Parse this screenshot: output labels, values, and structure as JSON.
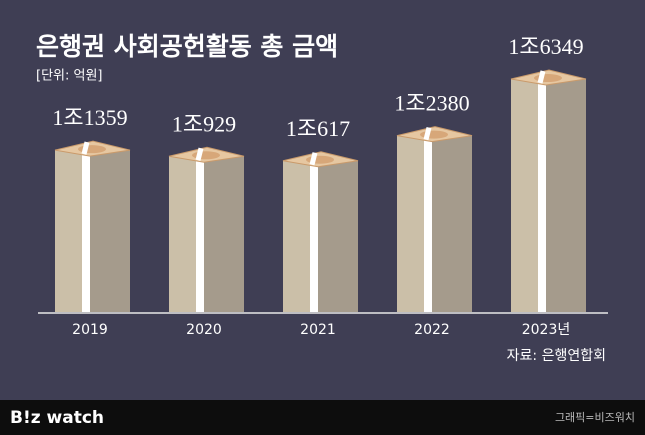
{
  "chart_data": {
    "type": "bar",
    "title": "은행권 사회공헌활동 총 금액",
    "subtitle": "[단위: 억원]",
    "categories": [
      "2019",
      "2020",
      "2021",
      "2022",
      "2023년"
    ],
    "values": [
      11359,
      10929,
      10617,
      12380,
      16349
    ],
    "value_labels": [
      "1조1359",
      "1조929",
      "1조617",
      "1조2380",
      "1조6349"
    ],
    "color": "#cbbfa8",
    "source": "자료: 은행연합회",
    "logo": "B!z watch",
    "credit": "그래픽=비즈워치"
  }
}
